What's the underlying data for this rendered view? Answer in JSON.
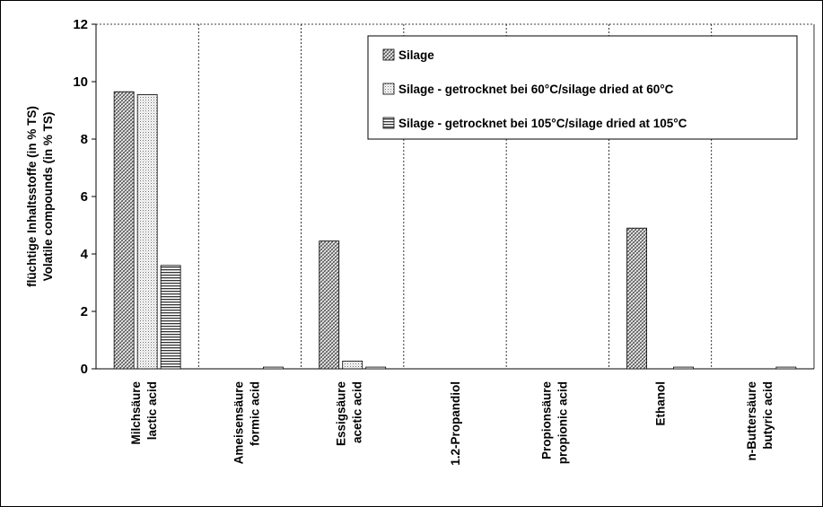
{
  "chart_data": {
    "type": "bar",
    "ylabel_line1": "flüchtige Inhaltsstoffe (in % TS)",
    "ylabel_line2": "Volatile compounds (in % TS)",
    "ylim": [
      0,
      12
    ],
    "yticks": [
      "0",
      "2",
      "4",
      "6",
      "8",
      "10",
      "12"
    ],
    "grid": "vertical dashed",
    "legend_position": "top-right",
    "categories": [
      {
        "line1": "Milchsäure",
        "line2": "lactic acid"
      },
      {
        "line1": "Ameisensäure",
        "line2": "formic acid"
      },
      {
        "line1": "Essigsäure",
        "line2": "acetic acid"
      },
      {
        "line1": "1.2-Propandiol",
        "line2": ""
      },
      {
        "line1": "Propionsäure",
        "line2": "propionic acid"
      },
      {
        "line1": "Ethanol",
        "line2": ""
      },
      {
        "line1": "n-Buttersäure",
        "line2": "butyric acid"
      }
    ],
    "series": [
      {
        "name": "Silage",
        "pattern": "diagonal-crosshatch",
        "values": [
          9.65,
          0,
          4.45,
          0,
          0,
          4.9,
          0
        ]
      },
      {
        "name": "Silage - getrocknet bei 60°C/silage dried at 60°C",
        "pattern": "dots",
        "values": [
          9.55,
          0,
          0.27,
          0,
          0,
          0,
          0
        ]
      },
      {
        "name": "Silage - getrocknet bei 105°C/silage dried at 105°C",
        "pattern": "horizontal-lines",
        "values": [
          3.6,
          0.06,
          0.06,
          0,
          0,
          0.06,
          0.06
        ]
      }
    ]
  }
}
